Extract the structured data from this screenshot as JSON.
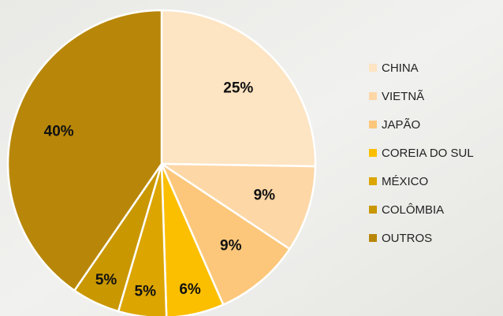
{
  "chart_data": {
    "type": "pie",
    "categories": [
      "CHINA",
      "VIETNÃ",
      "JAPÃO",
      "COREIA DO SUL",
      "MÉXICO",
      "COLÔMBIA",
      "OUTROS"
    ],
    "values": [
      25,
      9,
      9,
      6,
      5,
      5,
      40
    ],
    "value_labels": [
      "25%",
      "9%",
      "9%",
      "6%",
      "5%",
      "5%",
      "40%"
    ],
    "colors": [
      "#fde4c2",
      "#fdd7a6",
      "#fcc77a",
      "#fbbf00",
      "#dca500",
      "#c99700",
      "#b8870a"
    ],
    "legend": "right"
  }
}
